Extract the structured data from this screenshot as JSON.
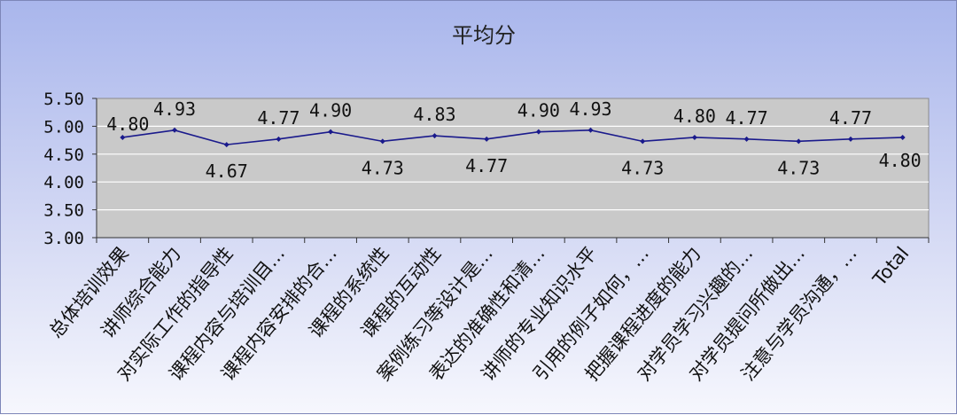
{
  "chart_data": {
    "type": "line",
    "title": "平均分",
    "xlabel": "",
    "ylabel": "",
    "ylim": [
      3.0,
      5.5
    ],
    "ytick_values": [
      3.0,
      3.5,
      4.0,
      4.5,
      5.0,
      5.5
    ],
    "ytick_labels": [
      "3.00",
      "3.50",
      "4.00",
      "4.50",
      "5.00",
      "5.50"
    ],
    "grid": true,
    "legend": "none",
    "line_color": "#1a1a8c",
    "plot_background": "#c9c9c9",
    "categories": [
      "总体培训效果",
      "讲师综合能力",
      "对实际工作的指导性",
      "课程内容与培训目…",
      "课程内容安排的合…",
      "课程的系统性",
      "课程的互动性",
      "案例练习等设计是…",
      "表达的准确性和清…",
      "讲师的专业知识水平",
      "引用的例子如何，…",
      "把握课程进度的能力",
      "对学员学习兴趣的…",
      "对学员提问所做出…",
      "注意与学员沟通，…",
      "Total"
    ],
    "values": [
      4.8,
      4.93,
      4.67,
      4.77,
      4.9,
      4.73,
      4.83,
      4.77,
      4.9,
      4.93,
      4.73,
      4.8,
      4.77,
      4.73,
      4.77,
      4.8
    ],
    "data_labels": [
      "4.80",
      "4.93",
      "4.67",
      "4.77",
      "4.90",
      "4.73",
      "4.83",
      "4.77",
      "4.90",
      "4.93",
      "4.73",
      "4.80",
      "4.77",
      "4.73",
      "4.77",
      "4.80"
    ]
  }
}
